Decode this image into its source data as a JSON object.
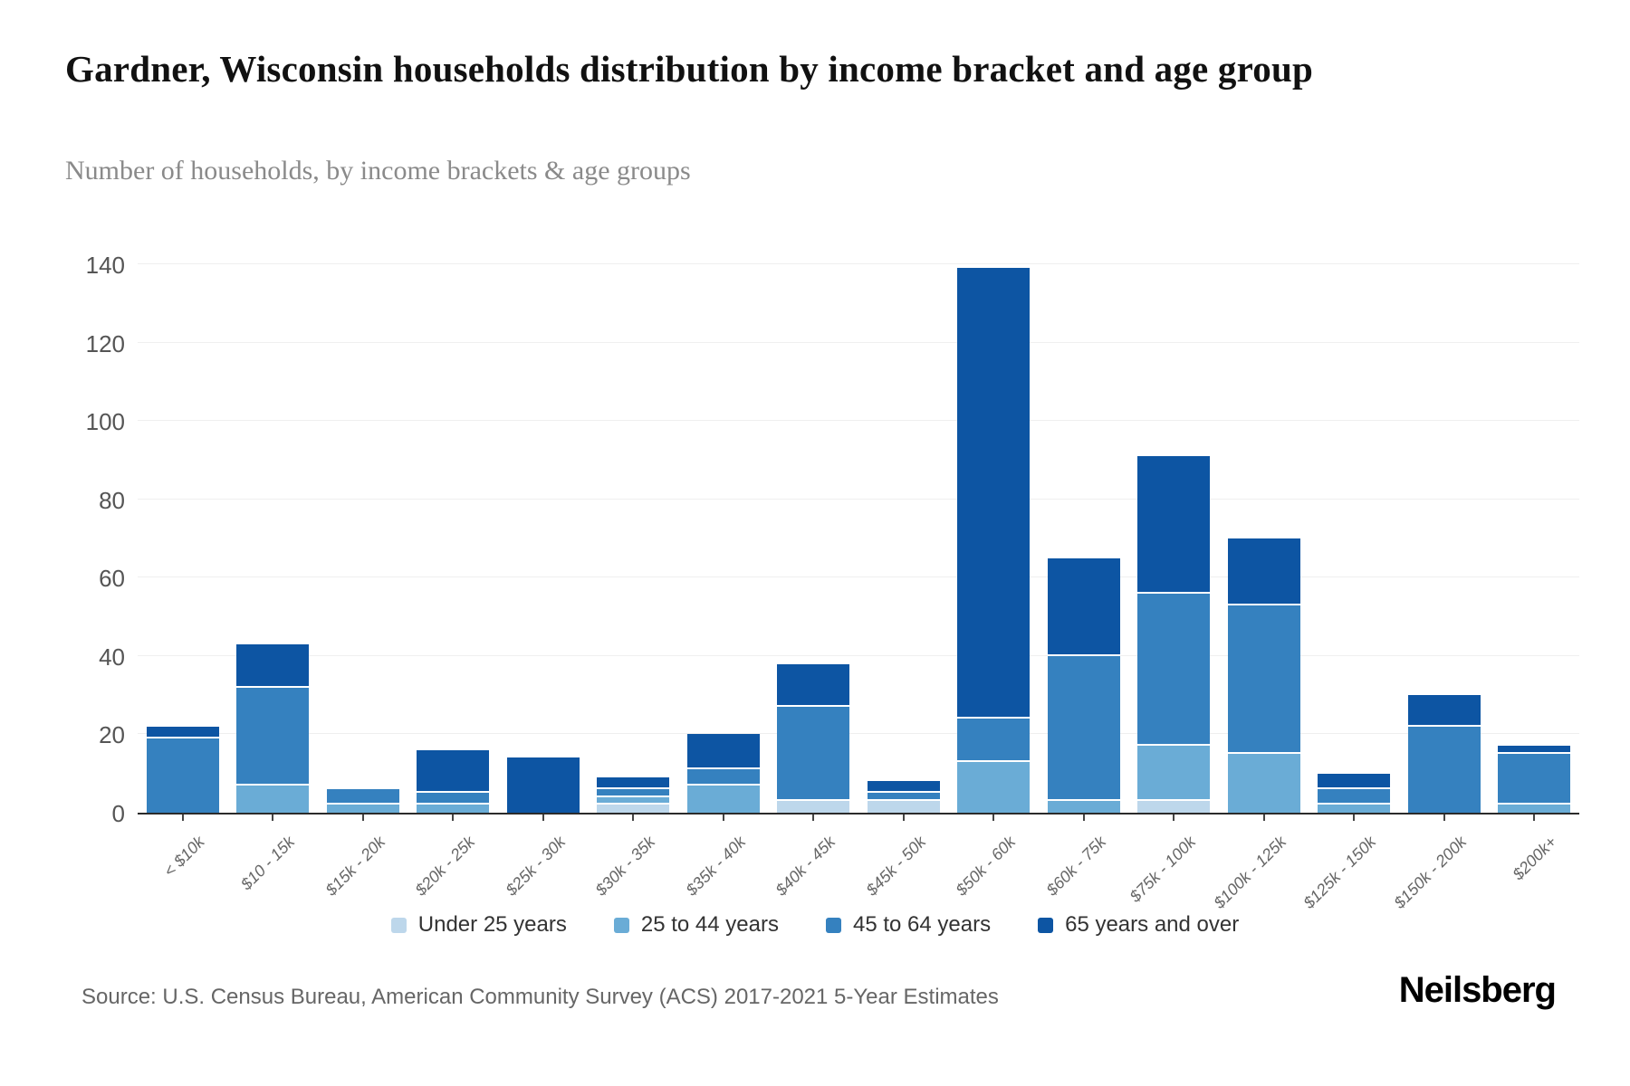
{
  "title": "Gardner, Wisconsin households distribution by income bracket and age group",
  "subtitle": "Number of households, by income brackets & age groups",
  "source": "Source: U.S. Census Bureau, American Community Survey (ACS) 2017-2021 5-Year Estimates",
  "logo": "Neilsberg",
  "chart_data": {
    "type": "bar",
    "stacked": true,
    "grid": true,
    "legend_position": "bottom",
    "ylim": [
      0,
      140
    ],
    "yticks": [
      0,
      20,
      40,
      60,
      80,
      100,
      120,
      140
    ],
    "categories": [
      "< $10k",
      "$10 - 15k",
      "$15k - 20k",
      "$20k - 25k",
      "$25k - 30k",
      "$30k - 35k",
      "$35k - 40k",
      "$40k - 45k",
      "$45k - 50k",
      "$50k - 60k",
      "$60k - 75k",
      "$75k - 100k",
      "$100k - 125k",
      "$125k - 150k",
      "$150k - 200k",
      "$200k+"
    ],
    "series": [
      {
        "name": "Under 25 years",
        "color": "#bdd7eb",
        "values": [
          0,
          0,
          0,
          0,
          0,
          2,
          0,
          3,
          3,
          0,
          0,
          3,
          0,
          0,
          0,
          0
        ]
      },
      {
        "name": "25 to 44 years",
        "color": "#6aacd6",
        "values": [
          0,
          7,
          2,
          2,
          0,
          2,
          7,
          0,
          0,
          13,
          3,
          14,
          15,
          2,
          0,
          2
        ]
      },
      {
        "name": "45 to 64 years",
        "color": "#3581bf",
        "values": [
          19,
          25,
          4,
          3,
          0,
          2,
          4,
          24,
          2,
          11,
          37,
          39,
          38,
          4,
          22,
          13
        ]
      },
      {
        "name": "65 years and over",
        "color": "#0d55a3",
        "values": [
          3,
          11,
          0,
          11,
          14,
          3,
          9,
          11,
          3,
          115,
          25,
          35,
          17,
          4,
          8,
          2
        ]
      }
    ],
    "totals": [
      22,
      43,
      6,
      16,
      14,
      9,
      20,
      38,
      8,
      139,
      65,
      91,
      70,
      10,
      30,
      17
    ]
  }
}
